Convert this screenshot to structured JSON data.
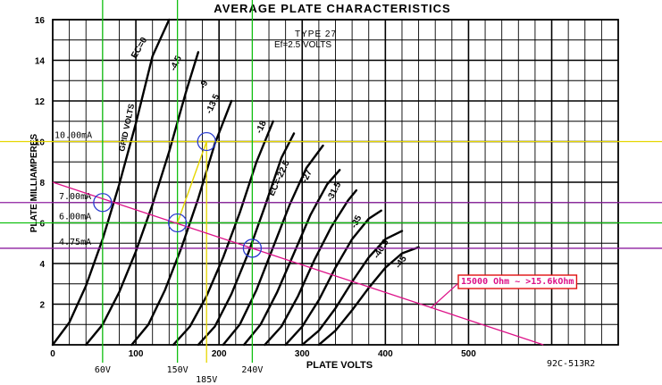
{
  "chart_data": {
    "type": "line",
    "title": "AVERAGE PLATE CHARACTERISTICS",
    "subtitle_line1": "TYPE 27",
    "subtitle_line2": "Ef=2.5 VOLTS",
    "xlabel": "PLATE VOLTS",
    "ylabel": "PLATE MILLIAMPERES",
    "xlim": [
      0,
      680
    ],
    "ylim": [
      0,
      16
    ],
    "x_ticks": [
      "0",
      "100",
      "200",
      "300",
      "400",
      "500"
    ],
    "y_ticks": [
      "2",
      "4",
      "6",
      "8",
      "10",
      "12",
      "14",
      "16"
    ],
    "grid": true,
    "code": "92C-513R2",
    "grid_voltage_label": "GRID VOLTS",
    "series": [
      {
        "name": "EC=0",
        "x": [
          0,
          20,
          40,
          60,
          80,
          100,
          120,
          140
        ],
        "y": [
          0,
          1.1,
          2.9,
          5.2,
          7.9,
          10.9,
          14.2,
          16
        ]
      },
      {
        "name": "-4.5",
        "x": [
          40,
          60,
          80,
          100,
          120,
          140,
          160,
          175
        ],
        "y": [
          0,
          1.0,
          2.6,
          4.6,
          6.9,
          9.5,
          12.4,
          14.4
        ]
      },
      {
        "name": "-9",
        "x": [
          95,
          115,
          135,
          155,
          175,
          195,
          215
        ],
        "y": [
          0,
          1.0,
          2.7,
          4.8,
          7.2,
          9.9,
          12.0
        ]
      },
      {
        "name": "-13.5",
        "x": [
          145,
          165,
          185,
          205,
          225,
          245,
          265
        ],
        "y": [
          0,
          0.9,
          2.4,
          4.3,
          6.5,
          9.0,
          11.0
        ]
      },
      {
        "name": "-18",
        "x": [
          175,
          195,
          215,
          235,
          255,
          275,
          290
        ],
        "y": [
          0,
          0.9,
          2.5,
          4.5,
          6.8,
          9.2,
          10.4
        ]
      },
      {
        "name": "EC=-22.5",
        "x": [
          205,
          225,
          245,
          265,
          285,
          305,
          325
        ],
        "y": [
          0,
          1.0,
          2.7,
          4.8,
          6.9,
          8.7,
          9.8
        ]
      },
      {
        "name": "-27",
        "x": [
          230,
          250,
          270,
          290,
          310,
          330,
          345
        ],
        "y": [
          0,
          1.0,
          2.6,
          4.5,
          6.4,
          7.9,
          8.6
        ]
      },
      {
        "name": "-31.5",
        "x": [
          255,
          275,
          295,
          315,
          335,
          355,
          365
        ],
        "y": [
          0,
          0.9,
          2.4,
          4.2,
          5.8,
          7.1,
          7.6
        ]
      },
      {
        "name": "-35",
        "x": [
          280,
          300,
          320,
          340,
          360,
          380,
          395
        ],
        "y": [
          0,
          0.9,
          2.2,
          3.8,
          5.2,
          6.2,
          6.6
        ]
      },
      {
        "name": "-40.5",
        "x": [
          300,
          320,
          340,
          360,
          380,
          400,
          420
        ],
        "y": [
          0,
          0.7,
          1.8,
          3.1,
          4.3,
          5.2,
          5.6
        ]
      },
      {
        "name": "-45",
        "x": [
          320,
          340,
          360,
          380,
          400,
          420,
          440
        ],
        "y": [
          0,
          0.7,
          1.7,
          2.8,
          3.8,
          4.5,
          4.8
        ]
      }
    ],
    "load_line": {
      "label": "15000 Ohm ~ >15.6kOhm",
      "x": [
        0,
        590
      ],
      "y": [
        8.0,
        0
      ],
      "color": "#dd1188"
    },
    "operating_points": [
      {
        "x": 60,
        "y": 7.0
      },
      {
        "x": 150,
        "y": 6.0
      },
      {
        "x": 240,
        "y": 4.75
      },
      {
        "x": 185,
        "y": 10.0
      }
    ],
    "current_lines": [
      {
        "value": 10.0,
        "label": "10.00mA",
        "color": "#e6d600"
      },
      {
        "value": 7.0,
        "label": "7.00mA",
        "color": "#8e1fa0"
      },
      {
        "value": 6.0,
        "label": "6.00mA",
        "color": "#10c010"
      },
      {
        "value": 4.75,
        "label": "4.75mA",
        "color": "#8e1fa0"
      }
    ],
    "voltage_lines": [
      {
        "value": 60,
        "label": "60V",
        "color": "#10c010"
      },
      {
        "value": 150,
        "label": "150V",
        "color": "#10c010"
      },
      {
        "value": 240,
        "label": "240V",
        "color": "#10c010"
      },
      {
        "value": 185,
        "label": "185V",
        "color": "#e6d600"
      }
    ]
  }
}
